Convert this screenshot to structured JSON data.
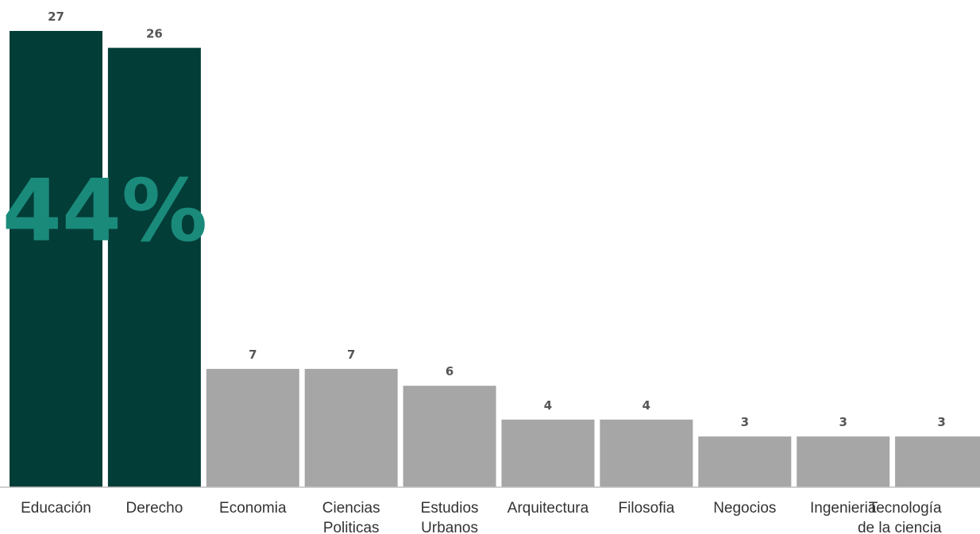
{
  "chart_data": {
    "type": "bar",
    "categories": [
      [
        "Educación"
      ],
      [
        "Derecho"
      ],
      [
        "Economia"
      ],
      [
        "Ciencias",
        "Politicas"
      ],
      [
        "Estudios",
        "Urbanos"
      ],
      [
        "Arquitectura"
      ],
      [
        "Filosofia"
      ],
      [
        "Negocios"
      ],
      [
        "Ingenieria"
      ],
      [
        "Tecnología",
        "de la ciencia"
      ]
    ],
    "values": [
      27,
      26,
      7,
      7,
      6,
      4,
      4,
      3,
      3,
      3
    ],
    "highlight_count": 2,
    "highlight_annotation": "44%",
    "ylim": [
      0,
      28.5
    ],
    "colors": {
      "highlight": "#033d37",
      "default": "#a6a6a6",
      "annotation": "#1a8a7b",
      "baseline": "#bfbfbf"
    }
  }
}
